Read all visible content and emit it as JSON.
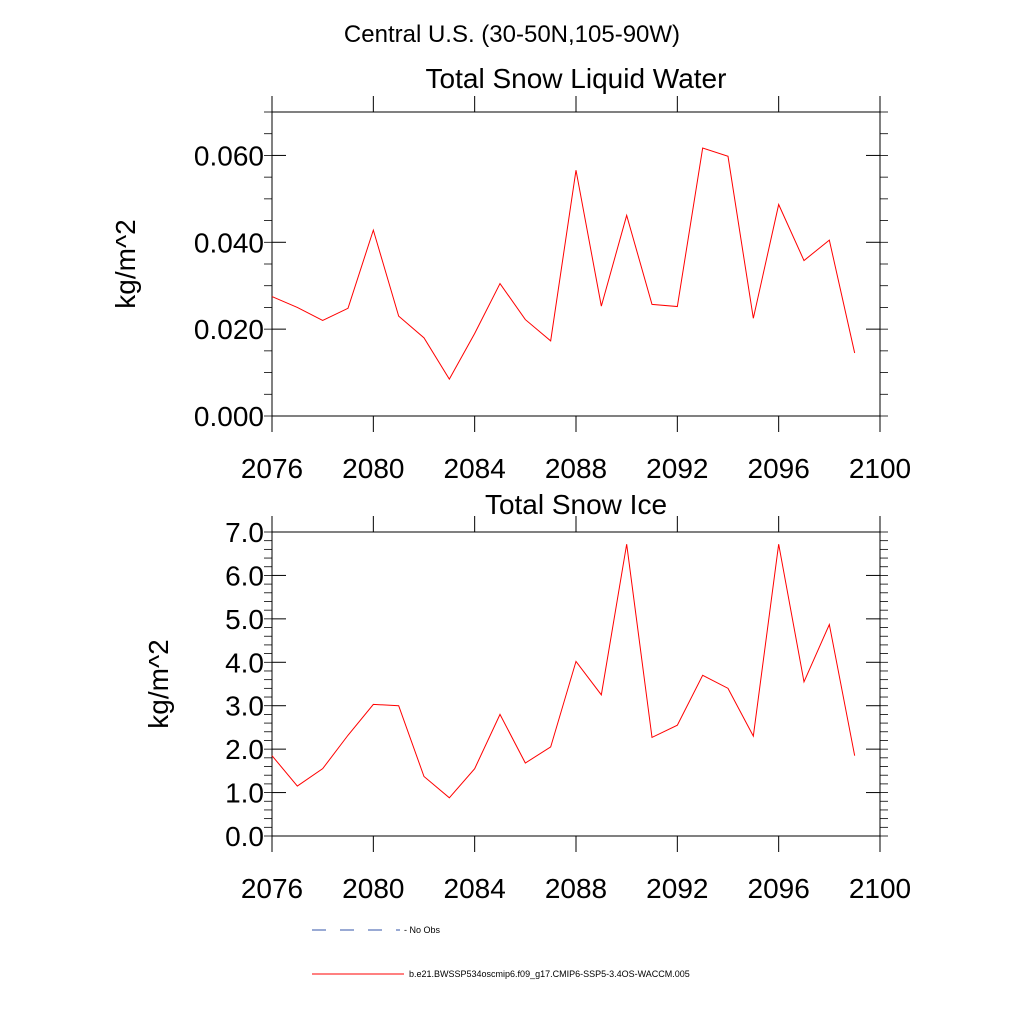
{
  "page_title": "Central U.S. (30-50N,105-90W)",
  "colors": {
    "series": "#ff0000",
    "no_obs": "#3355aa",
    "frame": "#000000"
  },
  "legend": [
    {
      "label": "- No Obs",
      "style": "dashed",
      "color": "#3355aa"
    },
    {
      "label": "b.e21.BWSSP534oscmip6.f09_g17.CMIP6-SSP5-3.4OS-WACCM.005",
      "style": "solid",
      "color": "#ff0000"
    }
  ],
  "chart_data": [
    {
      "type": "line",
      "title": "Total Snow Liquid Water",
      "xlabel": "",
      "ylabel": "kg/m^2",
      "xlim": [
        2076,
        2100
      ],
      "ylim": [
        0,
        0.07
      ],
      "x_ticks": [
        "2076",
        "2080",
        "2084",
        "2088",
        "2092",
        "2096",
        "2100"
      ],
      "y_ticks": [
        "0.000",
        "0.020",
        "0.040",
        "0.060"
      ],
      "grid": false,
      "x": [
        2076,
        2077,
        2078,
        2079,
        2080,
        2081,
        2082,
        2083,
        2084,
        2085,
        2086,
        2087,
        2088,
        2089,
        2090,
        2091,
        2092,
        2093,
        2094,
        2095,
        2096,
        2097,
        2098,
        2099
      ],
      "series": [
        {
          "values": [
            0.0275,
            0.025,
            0.022,
            0.0248,
            0.0428,
            0.023,
            0.018,
            0.0085,
            0.019,
            0.0305,
            0.0222,
            0.0173,
            0.0566,
            0.0253,
            0.0462,
            0.0257,
            0.0252,
            0.0617,
            0.0598,
            0.0225,
            0.0487,
            0.0358,
            0.0405,
            0.0145
          ]
        }
      ]
    },
    {
      "type": "line",
      "title": "Total Snow Ice",
      "xlabel": "",
      "ylabel": "kg/m^2",
      "xlim": [
        2076,
        2100
      ],
      "ylim": [
        0,
        7.0
      ],
      "x_ticks": [
        "2076",
        "2080",
        "2084",
        "2088",
        "2092",
        "2096",
        "2100"
      ],
      "y_ticks": [
        "0.0",
        "1.0",
        "2.0",
        "3.0",
        "4.0",
        "5.0",
        "6.0",
        "7.0"
      ],
      "grid": false,
      "x": [
        2076,
        2077,
        2078,
        2079,
        2080,
        2081,
        2082,
        2083,
        2084,
        2085,
        2086,
        2087,
        2088,
        2089,
        2090,
        2091,
        2092,
        2093,
        2094,
        2095,
        2096,
        2097,
        2098,
        2099
      ],
      "series": [
        {
          "values": [
            1.85,
            1.15,
            1.55,
            2.32,
            3.03,
            3.0,
            1.37,
            0.88,
            1.55,
            2.8,
            1.68,
            2.05,
            4.02,
            3.25,
            6.72,
            2.27,
            2.55,
            3.7,
            3.4,
            2.3,
            6.72,
            3.55,
            4.87,
            1.85
          ]
        }
      ]
    }
  ]
}
